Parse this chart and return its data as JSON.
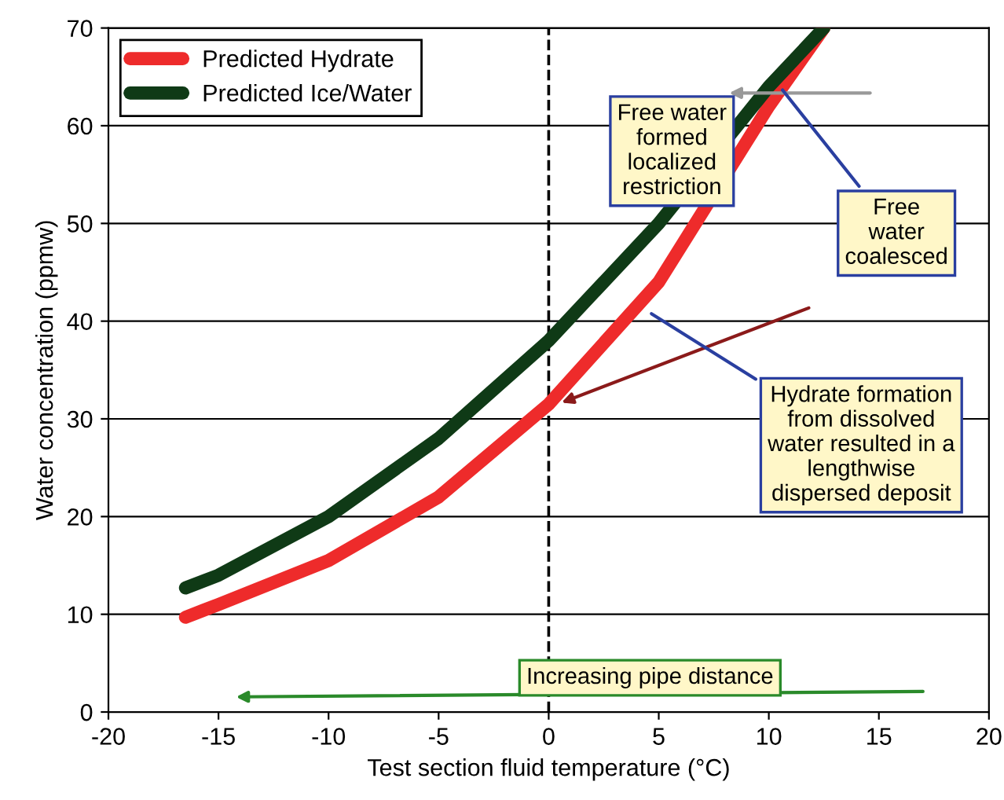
{
  "chart_data": {
    "type": "line",
    "xlabel": "Test section fluid temperature (°C)",
    "ylabel": "Water concentration (ppmw)",
    "series": [
      {
        "name": "Predicted Hydrate",
        "color": "#ee2b2b",
        "x": [
          -16.5,
          -15,
          -10,
          -5,
          0,
          5,
          10,
          12.5
        ],
        "values": [
          9.7,
          11,
          15.5,
          22,
          31.5,
          44,
          62,
          70
        ]
      },
      {
        "name": "Predicted Ice/Water",
        "color": "#0f3a16",
        "x": [
          -16.5,
          -15,
          -10,
          -5,
          0,
          5,
          10,
          12.5
        ],
        "values": [
          12.7,
          14,
          20,
          28,
          38,
          50,
          64,
          70
        ]
      }
    ],
    "xlim": [
      -20,
      20
    ],
    "xticks": [
      -20,
      -15,
      -10,
      -5,
      0,
      5,
      10,
      15,
      20
    ],
    "ylim": [
      0,
      70
    ],
    "yticks": [
      0,
      10,
      20,
      30,
      40,
      50,
      60,
      70
    ],
    "grid": "y",
    "legend": "top left",
    "line_style": "solid",
    "marker": "none",
    "ref_lines": [
      {
        "axis": "x",
        "value": 0,
        "label": null,
        "color": "#000000",
        "line_style": "dashed"
      }
    ],
    "annotations": [
      "Free water\nformed\nlocalized\nrestriction",
      {
        "text": "Free\nwater\ncoalesced",
        "x": 10.5,
        "y": 64
      },
      {
        "text": "Hydrate formation\nfrom dissolved\nwater resulted in a\nlengthwise\ndispersed deposit",
        "x": 4.5,
        "y": 41
      },
      "Increasing pipe distance"
    ]
  }
}
